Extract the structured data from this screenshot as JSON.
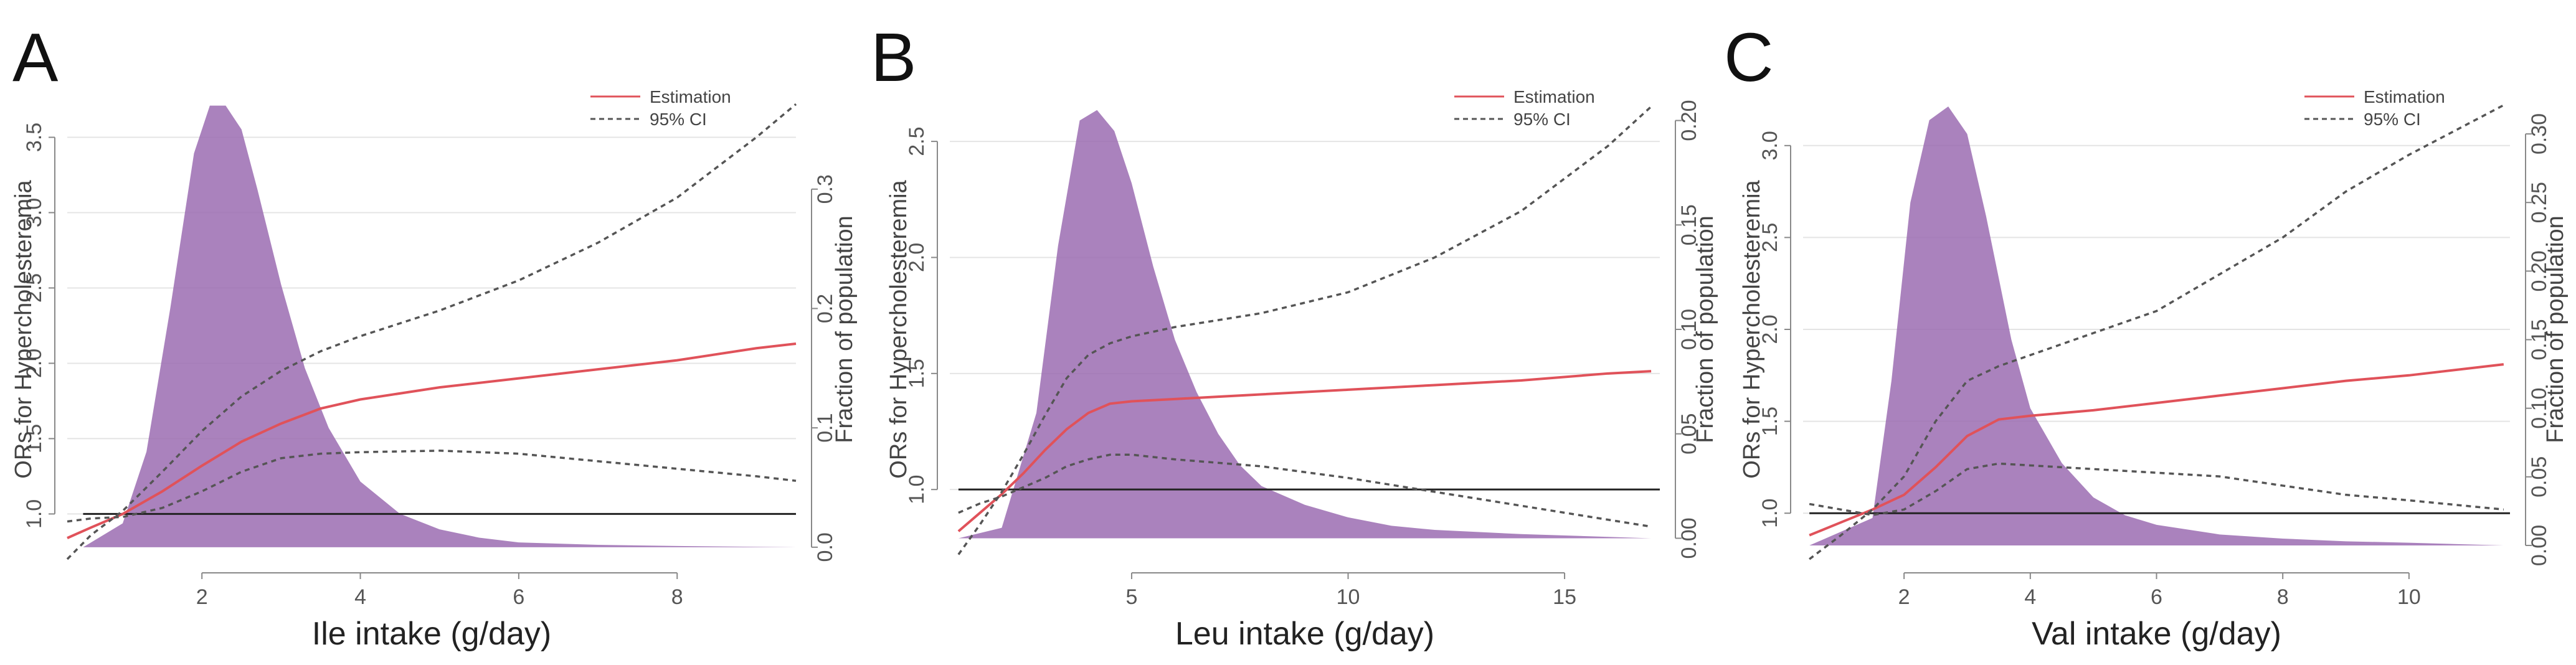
{
  "colors": {
    "density": "#9b6cb2",
    "estimate": "#e0525a",
    "ci": "#555555",
    "reference": "#222222",
    "grid": "#e4e4e4",
    "axis": "#888888"
  },
  "chart_data": [
    {
      "type": "line",
      "panel_label": "A",
      "title": "",
      "xlabel": "Ile intake (g/day)",
      "ylabel": "ORs for Hypercholesteremia",
      "y2label": "Fraction of population",
      "xlim": [
        0.3,
        9.5
      ],
      "ylim": [
        0.7,
        3.75
      ],
      "y2lim": [
        -0.01,
        0.375
      ],
      "xticks": [
        2,
        4,
        6,
        8
      ],
      "yticks": [
        1.0,
        1.5,
        2.0,
        2.5,
        3.0,
        3.5
      ],
      "y2ticks": [
        0.0,
        0.1,
        0.2,
        0.3
      ],
      "ytick_labels": [
        "1.0",
        "1.5",
        "2.0",
        "2.5",
        "3.0",
        "3.5"
      ],
      "y2tick_labels": [
        "0.0",
        "0.1",
        "0.2",
        "0.3"
      ],
      "reference_line": 1.0,
      "legend": [
        "Estimation",
        "95% CI"
      ],
      "legend_position": "top-right",
      "series": [
        {
          "name": "Estimation",
          "x": [
            0.3,
            0.6,
            1.0,
            1.5,
            2.0,
            2.5,
            3.0,
            3.5,
            4.0,
            5.0,
            6.0,
            7.0,
            8.0,
            9.0,
            9.5
          ],
          "y": [
            0.84,
            0.91,
            1.0,
            1.15,
            1.32,
            1.48,
            1.6,
            1.7,
            1.76,
            1.84,
            1.9,
            1.96,
            2.02,
            2.1,
            2.13
          ]
        },
        {
          "name": "95% CI upper",
          "x": [
            0.3,
            0.6,
            1.0,
            1.5,
            2.0,
            2.5,
            3.0,
            3.5,
            4.0,
            5.0,
            6.0,
            7.0,
            8.0,
            9.0,
            9.5
          ],
          "y": [
            0.7,
            0.86,
            1.02,
            1.28,
            1.55,
            1.78,
            1.95,
            2.08,
            2.18,
            2.35,
            2.55,
            2.8,
            3.1,
            3.5,
            3.72
          ]
        },
        {
          "name": "95% CI lower",
          "x": [
            0.3,
            0.6,
            1.0,
            1.5,
            2.0,
            2.5,
            3.0,
            3.5,
            4.0,
            5.0,
            6.0,
            7.0,
            8.0,
            9.0,
            9.5
          ],
          "y": [
            0.95,
            0.97,
            0.98,
            1.04,
            1.15,
            1.28,
            1.37,
            1.4,
            1.41,
            1.42,
            1.4,
            1.35,
            1.3,
            1.25,
            1.22
          ]
        }
      ],
      "density": {
        "name": "Fraction of population",
        "x": [
          0.5,
          1.0,
          1.3,
          1.6,
          1.9,
          2.1,
          2.3,
          2.5,
          2.7,
          3.0,
          3.3,
          3.6,
          4.0,
          4.5,
          5.0,
          5.5,
          6.0,
          7.0,
          8.0,
          9.5
        ],
        "y": [
          0.0,
          0.02,
          0.08,
          0.2,
          0.33,
          0.37,
          0.37,
          0.35,
          0.3,
          0.22,
          0.15,
          0.1,
          0.055,
          0.028,
          0.015,
          0.008,
          0.004,
          0.002,
          0.001,
          0.0
        ]
      }
    },
    {
      "type": "line",
      "panel_label": "B",
      "title": "",
      "xlabel": "Leu intake (g/day)",
      "ylabel": "ORs for Hypercholesteremia",
      "y2label": "Fraction of population",
      "xlim": [
        0.8,
        17.2
      ],
      "ylim": [
        0.7,
        2.68
      ],
      "y2lim": [
        -0.01,
        0.21
      ],
      "xticks": [
        5,
        10,
        15
      ],
      "yticks": [
        1.0,
        1.5,
        2.0,
        2.5
      ],
      "y2ticks": [
        0.0,
        0.05,
        0.1,
        0.15,
        0.2
      ],
      "ytick_labels": [
        "1.0",
        "1.5",
        "2.0",
        "2.5"
      ],
      "y2tick_labels": [
        "0.00",
        "0.05",
        "0.10",
        "0.15",
        "0.20"
      ],
      "reference_line": 1.0,
      "legend": [
        "Estimation",
        "95% CI"
      ],
      "legend_position": "top-right",
      "series": [
        {
          "name": "Estimation",
          "x": [
            1.0,
            1.5,
            2.0,
            2.5,
            3.0,
            3.5,
            4.0,
            4.5,
            5.0,
            6.0,
            8.0,
            10.0,
            12.0,
            14.0,
            16.0,
            17.0
          ],
          "y": [
            0.82,
            0.9,
            0.98,
            1.07,
            1.17,
            1.26,
            1.33,
            1.37,
            1.38,
            1.39,
            1.41,
            1.43,
            1.45,
            1.47,
            1.5,
            1.51
          ]
        },
        {
          "name": "95% CI upper",
          "x": [
            1.0,
            1.5,
            2.0,
            2.5,
            3.0,
            3.5,
            4.0,
            4.5,
            5.0,
            6.0,
            8.0,
            10.0,
            12.0,
            14.0,
            16.0,
            17.0
          ],
          "y": [
            0.72,
            0.85,
            0.99,
            1.15,
            1.32,
            1.48,
            1.58,
            1.63,
            1.66,
            1.7,
            1.76,
            1.85,
            2.0,
            2.2,
            2.48,
            2.65
          ]
        },
        {
          "name": "95% CI lower",
          "x": [
            1.0,
            1.5,
            2.0,
            2.5,
            3.0,
            3.5,
            4.0,
            4.5,
            5.0,
            6.0,
            8.0,
            10.0,
            12.0,
            14.0,
            16.0,
            17.0
          ],
          "y": [
            0.9,
            0.94,
            0.97,
            1.01,
            1.05,
            1.1,
            1.13,
            1.15,
            1.15,
            1.13,
            1.1,
            1.05,
            0.99,
            0.93,
            0.87,
            0.84
          ]
        }
      ],
      "density": {
        "name": "Fraction of population",
        "x": [
          1.0,
          2.0,
          2.8,
          3.3,
          3.8,
          4.2,
          4.6,
          5.0,
          5.5,
          6.0,
          6.5,
          7.0,
          7.5,
          8.0,
          9.0,
          10.0,
          11.0,
          12.0,
          14.0,
          17.0
        ],
        "y": [
          0.0,
          0.005,
          0.06,
          0.14,
          0.2,
          0.205,
          0.195,
          0.17,
          0.13,
          0.095,
          0.07,
          0.05,
          0.035,
          0.025,
          0.016,
          0.01,
          0.006,
          0.004,
          0.002,
          0.0
        ]
      }
    },
    {
      "type": "line",
      "panel_label": "C",
      "title": "",
      "xlabel": "Val intake (g/day)",
      "ylabel": "ORs for Hypercholesteremia",
      "y2label": "Fraction of population",
      "xlim": [
        0.4,
        11.6
      ],
      "ylim": [
        0.75,
        3.25
      ],
      "y2lim": [
        -0.01,
        0.325
      ],
      "xticks": [
        2,
        4,
        6,
        8,
        10
      ],
      "yticks": [
        1.0,
        1.5,
        2.0,
        2.5,
        3.0
      ],
      "y2ticks": [
        0.0,
        0.05,
        0.1,
        0.15,
        0.2,
        0.25,
        0.3
      ],
      "ytick_labels": [
        "1.0",
        "1.5",
        "2.0",
        "2.5",
        "3.0"
      ],
      "y2tick_labels": [
        "0.00",
        "0.05",
        "0.10",
        "0.15",
        "0.20",
        "0.25",
        "0.30"
      ],
      "reference_line": 1.0,
      "legend": [
        "Estimation",
        "95% CI"
      ],
      "legend_position": "top-right",
      "series": [
        {
          "name": "Estimation",
          "x": [
            0.5,
            1.0,
            1.5,
            2.0,
            2.5,
            3.0,
            3.5,
            4.0,
            5.0,
            6.0,
            7.0,
            8.0,
            9.0,
            10.0,
            11.5
          ],
          "y": [
            0.88,
            0.95,
            1.02,
            1.1,
            1.25,
            1.42,
            1.51,
            1.53,
            1.56,
            1.6,
            1.64,
            1.68,
            1.72,
            1.75,
            1.81
          ]
        },
        {
          "name": "95% CI upper",
          "x": [
            0.5,
            1.0,
            1.5,
            2.0,
            2.5,
            3.0,
            3.5,
            4.0,
            5.0,
            6.0,
            7.0,
            8.0,
            9.0,
            10.0,
            11.5
          ],
          "y": [
            0.75,
            0.88,
            1.02,
            1.2,
            1.5,
            1.72,
            1.8,
            1.86,
            1.98,
            2.1,
            2.3,
            2.5,
            2.75,
            2.95,
            3.22
          ]
        },
        {
          "name": "95% CI lower",
          "x": [
            0.5,
            1.0,
            1.5,
            2.0,
            2.5,
            3.0,
            3.5,
            4.0,
            5.0,
            6.0,
            7.0,
            8.0,
            9.0,
            10.0,
            11.5
          ],
          "y": [
            1.05,
            1.02,
            0.99,
            1.02,
            1.12,
            1.24,
            1.27,
            1.26,
            1.24,
            1.22,
            1.2,
            1.15,
            1.1,
            1.07,
            1.02
          ]
        }
      ],
      "density": {
        "name": "Fraction of population",
        "x": [
          0.5,
          1.5,
          1.8,
          2.1,
          2.4,
          2.7,
          3.0,
          3.3,
          3.7,
          4.0,
          4.5,
          5.0,
          5.5,
          6.0,
          7.0,
          8.0,
          9.0,
          10.0,
          11.5
        ],
        "y": [
          0.0,
          0.02,
          0.12,
          0.25,
          0.31,
          0.32,
          0.3,
          0.24,
          0.15,
          0.1,
          0.06,
          0.035,
          0.022,
          0.015,
          0.008,
          0.005,
          0.003,
          0.002,
          0.0
        ]
      }
    }
  ]
}
